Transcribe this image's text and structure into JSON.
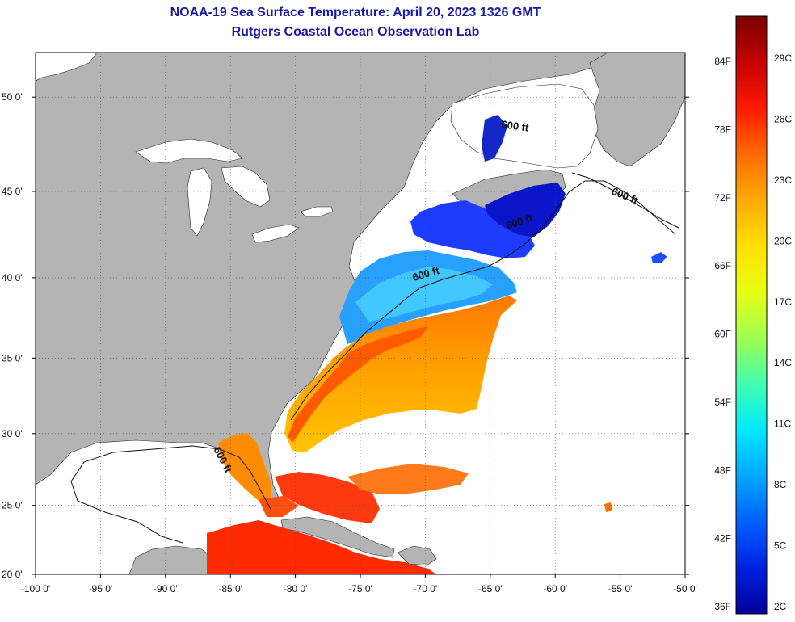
{
  "header": {
    "title": "NOAA-19 Sea Surface Temperature:  April 20, 2023 1326 GMT",
    "subtitle": "Rutgers Coastal Ocean Observation Lab"
  },
  "map": {
    "lon_ticks": [
      "-100 0'",
      "-95 0'",
      "-90 0'",
      "-85 0'",
      "-80 0'",
      "-75 0'",
      "-70 0'",
      "-65 0'",
      "-60 0'",
      "-55 0'",
      "-50 0'"
    ],
    "lat_ticks": [
      "50 0'",
      "45 0'",
      "40 0'",
      "35 0'",
      "30 0'",
      "25 0'",
      "20 0'"
    ],
    "isobath_label": "600 ft",
    "land_color": "#b4b4b4",
    "no_data_color": "#ffffff"
  },
  "colorbar": {
    "fahrenheit_labels": [
      "84F",
      "78F",
      "72F",
      "66F",
      "60F",
      "54F",
      "48F",
      "42F",
      "36F"
    ],
    "celsius_labels": [
      "29C",
      "26C",
      "23C",
      "20C",
      "17C",
      "14C",
      "11C",
      "8C",
      "5C",
      "2C"
    ],
    "colors": [
      "#7a0000",
      "#c40000",
      "#ff1a00",
      "#ff6a00",
      "#ffaa00",
      "#ffe000",
      "#e8ff10",
      "#a0ff50",
      "#40ffb0",
      "#00e8ff",
      "#00a8ff",
      "#0060ff",
      "#0020e0",
      "#00009a"
    ]
  }
}
